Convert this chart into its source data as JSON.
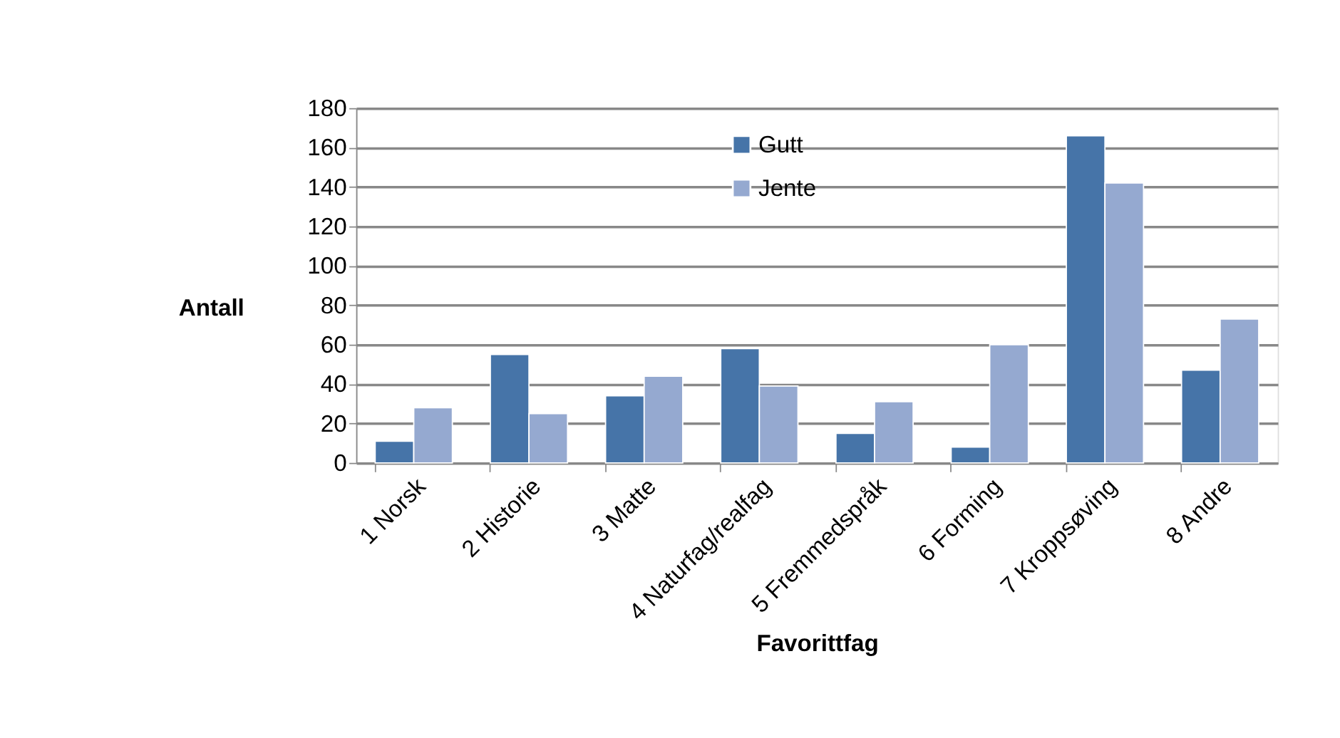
{
  "chart_data": {
    "type": "bar",
    "xlabel": "Favorittfag",
    "ylabel": "Antall",
    "categories": [
      "1 Norsk",
      "2 Historie",
      "3 Matte",
      "4 Naturfag/realfag",
      "5 Fremmedspråk",
      "6 Forming",
      "7 Kroppsøving",
      "8 Andre"
    ],
    "series": [
      {
        "name": "Gutt",
        "color": "#4674a8",
        "values": [
          11,
          55,
          34,
          58,
          15,
          8,
          166,
          47
        ]
      },
      {
        "name": "Jente",
        "color": "#95a9d0",
        "values": [
          28,
          25,
          44,
          39,
          31,
          60,
          142,
          73
        ]
      }
    ],
    "ylim": [
      0,
      180
    ],
    "yticks": [
      0,
      20,
      40,
      60,
      80,
      100,
      120,
      140,
      160,
      180
    ],
    "grid": "y",
    "legend": "top"
  }
}
